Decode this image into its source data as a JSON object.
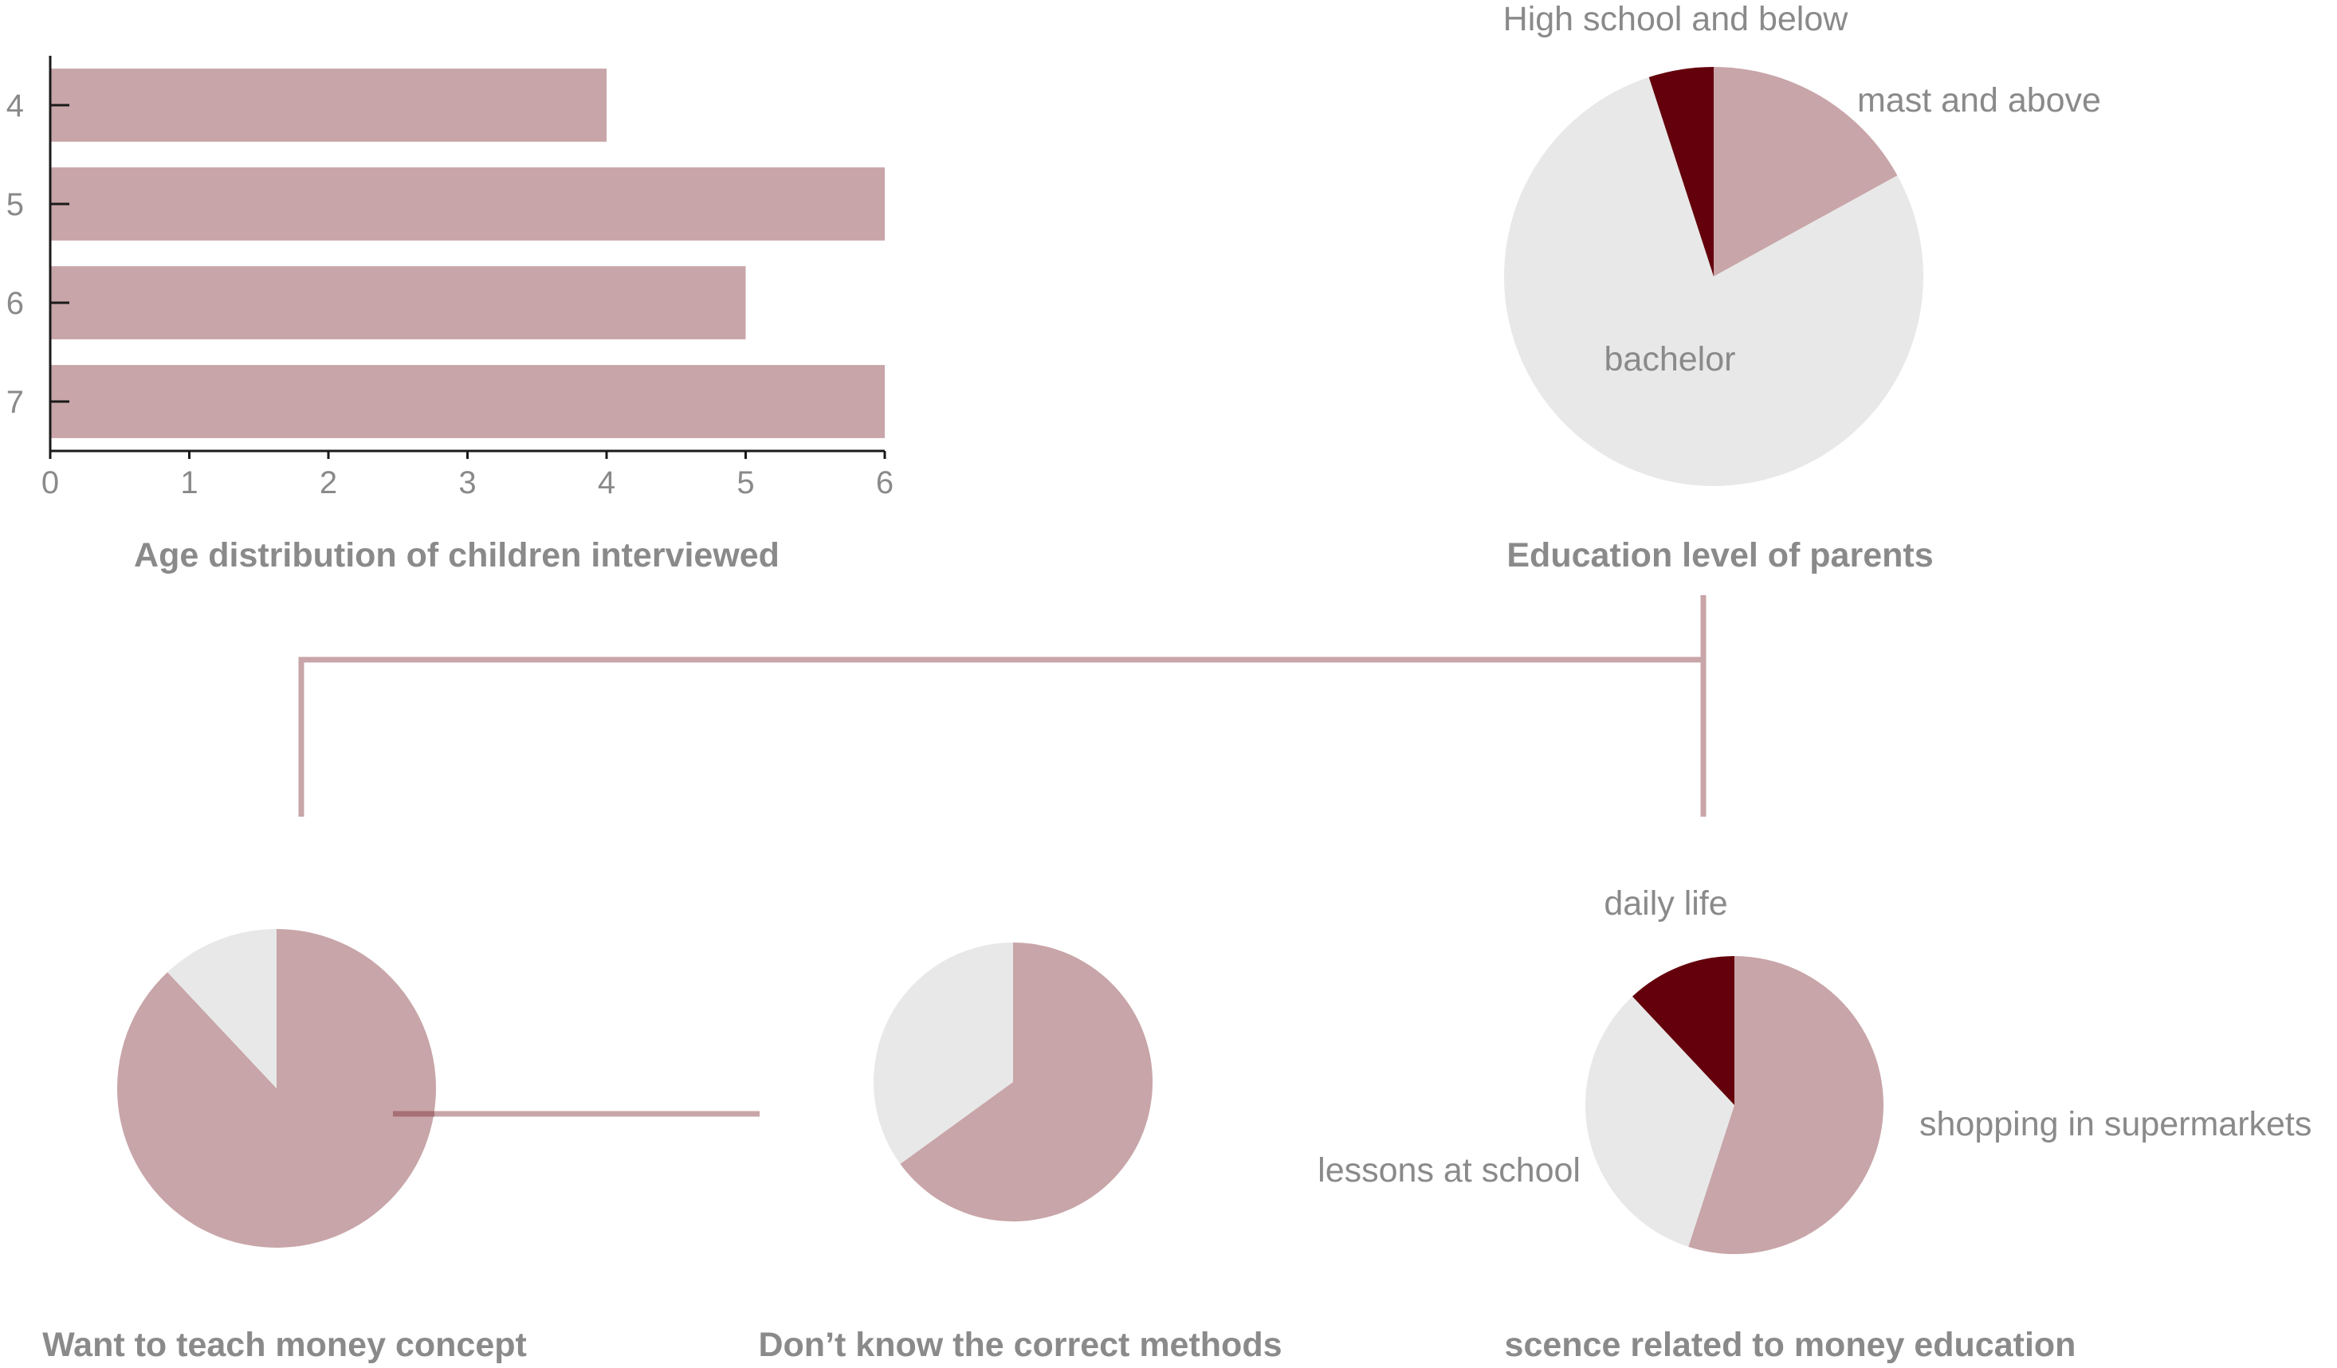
{
  "colors": {
    "accent": "#c8a5a8",
    "dark": "#64000c",
    "light": "#e8e8e8",
    "text": "#8a8a8a",
    "axis": "#1a1a1a"
  },
  "chart_data": [
    {
      "type": "bar",
      "orientation": "horizontal",
      "title": "Age distribution of children interviewed",
      "categories": [
        "4",
        "5",
        "6",
        "7"
      ],
      "values": [
        4,
        6,
        5,
        6
      ],
      "xlim": [
        0,
        6
      ],
      "x_ticks": [
        "0",
        "1",
        "2",
        "3",
        "4",
        "5",
        "6"
      ],
      "grid": false
    },
    {
      "type": "pie",
      "title": "Education level of parents",
      "slices": [
        {
          "label": "mast and above",
          "value": 17,
          "color": "#c8a5a8"
        },
        {
          "label": "bachelor",
          "value": 78,
          "color": "#e8e8e8"
        },
        {
          "label": "High school and below",
          "value": 5,
          "color": "#64000c"
        }
      ]
    },
    {
      "type": "pie",
      "title": "Want to teach money concept",
      "slices": [
        {
          "label": "",
          "value": 88,
          "color": "#c8a5a8"
        },
        {
          "label": "",
          "value": 12,
          "color": "#e8e8e8"
        }
      ]
    },
    {
      "type": "pie",
      "title": "Don’t know the correct methods",
      "slices": [
        {
          "label": "",
          "value": 65,
          "color": "#c8a5a8"
        },
        {
          "label": "",
          "value": 35,
          "color": "#e8e8e8"
        }
      ]
    },
    {
      "type": "pie",
      "title": "scence related to money education",
      "slices": [
        {
          "label": "shopping in supermarkets",
          "value": 55,
          "color": "#c8a5a8"
        },
        {
          "label": "lessons at school",
          "value": 33,
          "color": "#e8e8e8"
        },
        {
          "label": "daily life",
          "value": 12,
          "color": "#64000c"
        }
      ]
    }
  ]
}
